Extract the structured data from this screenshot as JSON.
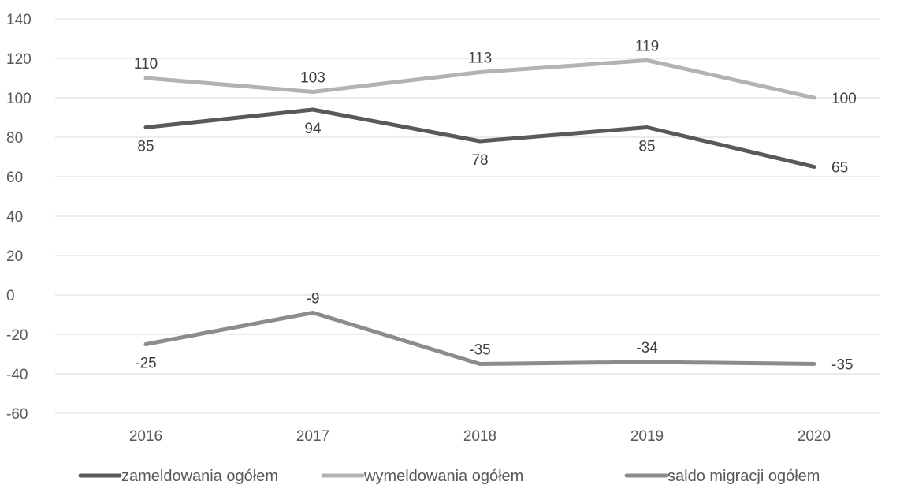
{
  "chart_data": {
    "type": "line",
    "categories": [
      "2016",
      "2017",
      "2018",
      "2019",
      "2020"
    ],
    "ylim": [
      -60,
      140
    ],
    "yticks": [
      -60,
      -40,
      -20,
      0,
      20,
      40,
      60,
      80,
      100,
      120,
      140
    ],
    "grid": true,
    "legend_position": "bottom",
    "series": [
      {
        "name": "zameldowania ogółem",
        "values": [
          85,
          94,
          78,
          85,
          65
        ],
        "color": "#595959",
        "label_side": [
          "below",
          "below",
          "below",
          "below",
          "right"
        ]
      },
      {
        "name": "wymeldowania ogółem",
        "values": [
          110,
          103,
          113,
          119,
          100
        ],
        "color": "#b3b3b3",
        "label_side": [
          "above",
          "above",
          "above",
          "above",
          "right"
        ]
      },
      {
        "name": "saldo migracji ogółem",
        "values": [
          -25,
          -9,
          -35,
          -34,
          -35
        ],
        "color": "#8c8c8c",
        "label_side": [
          "below",
          "above",
          "above",
          "above",
          "right"
        ]
      }
    ]
  }
}
